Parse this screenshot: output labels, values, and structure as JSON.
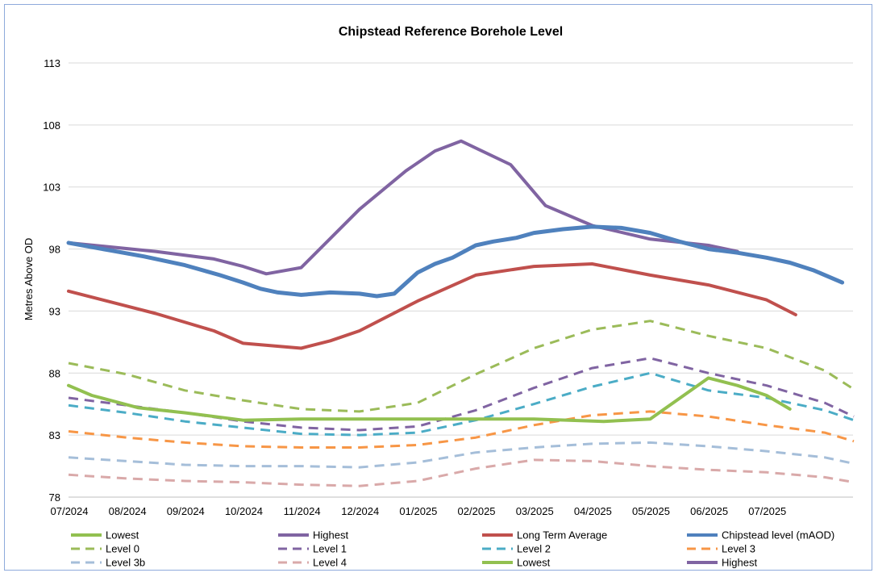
{
  "chart_data": {
    "type": "line",
    "title": "Chipstead Reference Borehole Level",
    "xlabel": "",
    "ylabel": "Metres Above OD",
    "ylim": [
      78,
      113
    ],
    "yticks": [
      78,
      83,
      88,
      93,
      98,
      103,
      108,
      113
    ],
    "x_ticks": [
      "07/2024",
      "08/2024",
      "09/2024",
      "10/2024",
      "11/2024",
      "12/2024",
      "01/2025",
      "02/2025",
      "03/2025",
      "04/2025",
      "05/2025",
      "06/2025",
      "07/2025"
    ],
    "grid": true,
    "legend_position": "bottom",
    "series": [
      {
        "name": "Lowest",
        "color": "#92c050",
        "style": "solid",
        "width": 4,
        "points": [
          [
            0,
            87.0
          ],
          [
            0.4,
            86.2
          ],
          [
            1.2,
            85.2
          ],
          [
            2,
            84.8
          ],
          [
            3,
            84.2
          ],
          [
            4,
            84.3
          ],
          [
            5,
            84.3
          ],
          [
            6,
            84.3
          ],
          [
            7,
            84.3
          ],
          [
            8,
            84.3
          ],
          [
            9.2,
            84.1
          ],
          [
            10,
            84.3
          ],
          [
            11,
            87.6
          ],
          [
            11.5,
            87.0
          ],
          [
            12,
            86.2
          ],
          [
            12.4,
            85.1
          ]
        ]
      },
      {
        "name": "Highest",
        "color": "#8064a2",
        "style": "solid",
        "width": 4,
        "points": [
          [
            0,
            98.5
          ],
          [
            1.5,
            97.8
          ],
          [
            2.5,
            97.2
          ],
          [
            3,
            96.6
          ],
          [
            3.4,
            96.0
          ],
          [
            4,
            96.5
          ],
          [
            5,
            101.2
          ],
          [
            5.8,
            104.3
          ],
          [
            6.3,
            105.9
          ],
          [
            6.75,
            106.7
          ],
          [
            7.6,
            104.8
          ],
          [
            8.2,
            101.5
          ],
          [
            9,
            99.9
          ],
          [
            10,
            98.8
          ],
          [
            11,
            98.3
          ],
          [
            11.5,
            97.8
          ]
        ]
      },
      {
        "name": "Long Term Average",
        "color": "#c0504d",
        "style": "solid",
        "width": 4,
        "points": [
          [
            0,
            94.6
          ],
          [
            1.5,
            92.8
          ],
          [
            2.5,
            91.4
          ],
          [
            3,
            90.4
          ],
          [
            4,
            90.0
          ],
          [
            4.5,
            90.6
          ],
          [
            5,
            91.4
          ],
          [
            6,
            93.8
          ],
          [
            7,
            95.9
          ],
          [
            8,
            96.6
          ],
          [
            9,
            96.8
          ],
          [
            10,
            95.9
          ],
          [
            11,
            95.1
          ],
          [
            12,
            93.9
          ],
          [
            12.5,
            92.7
          ]
        ]
      },
      {
        "name": "Chipstead level (mAOD)",
        "color": "#4f81bd",
        "style": "solid",
        "width": 5,
        "points": [
          [
            0,
            98.5
          ],
          [
            0.7,
            97.9
          ],
          [
            1.3,
            97.4
          ],
          [
            2,
            96.7
          ],
          [
            2.6,
            95.9
          ],
          [
            3,
            95.3
          ],
          [
            3.3,
            94.8
          ],
          [
            3.6,
            94.5
          ],
          [
            4,
            94.3
          ],
          [
            4.5,
            94.5
          ],
          [
            5,
            94.4
          ],
          [
            5.3,
            94.2
          ],
          [
            5.6,
            94.4
          ],
          [
            6,
            96.1
          ],
          [
            6.3,
            96.8
          ],
          [
            6.6,
            97.3
          ],
          [
            7,
            98.3
          ],
          [
            7.3,
            98.6
          ],
          [
            7.7,
            98.9
          ],
          [
            8,
            99.3
          ],
          [
            8.5,
            99.6
          ],
          [
            9,
            99.8
          ],
          [
            9.5,
            99.7
          ],
          [
            10,
            99.3
          ],
          [
            10.5,
            98.6
          ],
          [
            11,
            98.0
          ],
          [
            11.5,
            97.7
          ],
          [
            12,
            97.3
          ],
          [
            12.4,
            96.9
          ],
          [
            12.8,
            96.3
          ],
          [
            13.3,
            95.3
          ]
        ]
      },
      {
        "name": "Level 0",
        "color": "#9bbb59",
        "style": "dashed",
        "width": 3,
        "points": [
          [
            0,
            88.8
          ],
          [
            1,
            87.9
          ],
          [
            2,
            86.6
          ],
          [
            3,
            85.8
          ],
          [
            4,
            85.1
          ],
          [
            5,
            84.9
          ],
          [
            6,
            85.6
          ],
          [
            7,
            87.9
          ],
          [
            8,
            90.0
          ],
          [
            9,
            91.5
          ],
          [
            10,
            92.2
          ],
          [
            11,
            91.0
          ],
          [
            12,
            90.0
          ],
          [
            13,
            88.2
          ],
          [
            13.5,
            86.7
          ]
        ]
      },
      {
        "name": "Level 1",
        "color": "#8064a2",
        "style": "dashed",
        "width": 3,
        "points": [
          [
            0,
            86.0
          ],
          [
            1,
            85.4
          ],
          [
            2,
            84.8
          ],
          [
            3,
            84.1
          ],
          [
            4,
            83.6
          ],
          [
            5,
            83.4
          ],
          [
            6,
            83.7
          ],
          [
            7,
            85.0
          ],
          [
            8,
            86.8
          ],
          [
            9,
            88.4
          ],
          [
            10,
            89.2
          ],
          [
            11,
            88.0
          ],
          [
            12,
            87.0
          ],
          [
            13,
            85.6
          ],
          [
            13.5,
            84.5
          ]
        ]
      },
      {
        "name": "Level 2",
        "color": "#4bacc6",
        "style": "dashed",
        "width": 3,
        "points": [
          [
            0,
            85.4
          ],
          [
            1,
            84.8
          ],
          [
            2,
            84.1
          ],
          [
            3,
            83.6
          ],
          [
            4,
            83.1
          ],
          [
            5,
            83.0
          ],
          [
            6,
            83.2
          ],
          [
            7,
            84.2
          ],
          [
            8,
            85.5
          ],
          [
            9,
            86.9
          ],
          [
            10,
            88.0
          ],
          [
            11,
            86.6
          ],
          [
            12,
            86.0
          ],
          [
            13,
            85.0
          ],
          [
            13.5,
            84.2
          ]
        ]
      },
      {
        "name": "Level 3",
        "color": "#f79646",
        "style": "dashed",
        "width": 3,
        "points": [
          [
            0,
            83.3
          ],
          [
            1,
            82.8
          ],
          [
            2,
            82.4
          ],
          [
            3,
            82.1
          ],
          [
            4,
            82.0
          ],
          [
            5,
            82.0
          ],
          [
            6,
            82.2
          ],
          [
            7,
            82.8
          ],
          [
            8,
            83.8
          ],
          [
            9,
            84.6
          ],
          [
            10,
            84.9
          ],
          [
            11,
            84.5
          ],
          [
            12,
            83.8
          ],
          [
            13,
            83.2
          ],
          [
            13.5,
            82.5
          ]
        ]
      },
      {
        "name": "Level 3b",
        "color": "#a5bed9",
        "style": "dashed",
        "width": 3,
        "points": [
          [
            0,
            81.2
          ],
          [
            1,
            80.9
          ],
          [
            2,
            80.6
          ],
          [
            3,
            80.5
          ],
          [
            4,
            80.5
          ],
          [
            5,
            80.4
          ],
          [
            6,
            80.8
          ],
          [
            7,
            81.6
          ],
          [
            8,
            82.0
          ],
          [
            9,
            82.3
          ],
          [
            10,
            82.4
          ],
          [
            11,
            82.1
          ],
          [
            12,
            81.7
          ],
          [
            13,
            81.2
          ],
          [
            13.5,
            80.7
          ]
        ]
      },
      {
        "name": "Level 4",
        "color": "#d9a9a9",
        "style": "dashed",
        "width": 3,
        "points": [
          [
            0,
            79.8
          ],
          [
            1,
            79.5
          ],
          [
            2,
            79.3
          ],
          [
            3,
            79.2
          ],
          [
            4,
            79.0
          ],
          [
            5,
            78.9
          ],
          [
            6,
            79.3
          ],
          [
            7,
            80.3
          ],
          [
            8,
            81.0
          ],
          [
            9,
            80.9
          ],
          [
            10,
            80.5
          ],
          [
            11,
            80.2
          ],
          [
            12,
            80.0
          ],
          [
            13,
            79.6
          ],
          [
            13.5,
            79.2
          ]
        ]
      }
    ],
    "legend_entries": [
      {
        "label": "Lowest",
        "color": "#92c050",
        "style": "solid"
      },
      {
        "label": "Highest",
        "color": "#8064a2",
        "style": "solid"
      },
      {
        "label": "Long Term Average",
        "color": "#c0504d",
        "style": "solid"
      },
      {
        "label": "Chipstead level (mAOD)",
        "color": "#4f81bd",
        "style": "solid"
      },
      {
        "label": "Level 0",
        "color": "#9bbb59",
        "style": "dashed"
      },
      {
        "label": "Level 1",
        "color": "#8064a2",
        "style": "dashed"
      },
      {
        "label": "Level 2",
        "color": "#4bacc6",
        "style": "dashed"
      },
      {
        "label": "Level 3",
        "color": "#f79646",
        "style": "dashed"
      },
      {
        "label": "Level 3b",
        "color": "#a5bed9",
        "style": "dashed"
      },
      {
        "label": "Level 4",
        "color": "#d9a9a9",
        "style": "dashed"
      },
      {
        "label": "Lowest",
        "color": "#92c050",
        "style": "solid"
      },
      {
        "label": "Highest",
        "color": "#8064a2",
        "style": "solid"
      }
    ]
  }
}
